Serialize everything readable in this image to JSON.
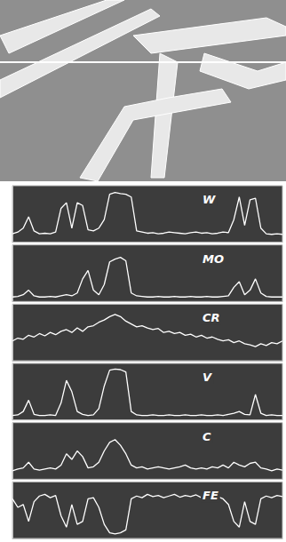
{
  "chart_data": {
    "type": "line",
    "x": [
      0,
      2,
      4,
      6,
      8,
      10,
      12,
      14,
      16,
      18,
      20,
      22,
      24,
      26,
      28,
      30,
      32,
      34,
      36,
      38,
      40,
      42,
      44,
      46,
      48,
      50,
      52,
      54,
      56,
      58,
      60,
      62,
      64,
      66,
      68,
      70,
      72,
      74,
      76,
      78,
      80,
      82,
      84,
      86,
      88,
      90,
      92,
      94,
      96,
      98,
      100
    ],
    "series": [
      {
        "name": "W",
        "color": "#ffffff",
        "values": [
          15,
          18,
          25,
          45,
          20,
          15,
          16,
          15,
          18,
          60,
          70,
          25,
          70,
          65,
          22,
          20,
          25,
          40,
          85,
          88,
          86,
          85,
          80,
          20,
          18,
          16,
          17,
          15,
          16,
          18,
          17,
          16,
          15,
          17,
          18,
          16,
          17,
          15,
          16,
          18,
          17,
          40,
          80,
          30,
          75,
          78,
          25,
          15,
          14,
          15,
          14
        ]
      },
      {
        "name": "MO",
        "color": "#ffffff",
        "values": [
          8,
          9,
          12,
          20,
          10,
          8,
          8,
          9,
          8,
          10,
          12,
          10,
          15,
          40,
          55,
          20,
          12,
          30,
          70,
          75,
          78,
          72,
          15,
          10,
          9,
          8,
          8,
          9,
          8,
          8,
          9,
          8,
          8,
          9,
          8,
          8,
          9,
          8,
          8,
          9,
          10,
          25,
          35,
          12,
          20,
          40,
          15,
          9,
          8,
          8,
          8
        ]
      },
      {
        "name": "CR",
        "color": "#ffffff",
        "values": [
          35,
          40,
          38,
          45,
          42,
          48,
          44,
          50,
          46,
          52,
          55,
          50,
          58,
          52,
          60,
          62,
          68,
          72,
          78,
          82,
          78,
          70,
          65,
          60,
          62,
          58,
          55,
          57,
          50,
          52,
          48,
          50,
          45,
          47,
          42,
          45,
          40,
          42,
          38,
          35,
          37,
          32,
          35,
          30,
          28,
          25,
          30,
          27,
          32,
          30,
          35
        ]
      },
      {
        "name": "V",
        "color": "#ffffff",
        "values": [
          8,
          9,
          15,
          35,
          10,
          8,
          8,
          9,
          8,
          30,
          70,
          50,
          15,
          10,
          8,
          9,
          20,
          60,
          88,
          90,
          89,
          85,
          15,
          9,
          8,
          8,
          9,
          8,
          8,
          9,
          8,
          8,
          9,
          8,
          8,
          9,
          8,
          8,
          9,
          8,
          10,
          12,
          15,
          10,
          9,
          45,
          12,
          8,
          9,
          8,
          8
        ]
      },
      {
        "name": "C",
        "color": "#ffffff",
        "values": [
          15,
          18,
          20,
          30,
          18,
          16,
          18,
          20,
          18,
          25,
          45,
          35,
          50,
          40,
          20,
          22,
          30,
          50,
          65,
          70,
          60,
          45,
          25,
          20,
          22,
          18,
          20,
          22,
          20,
          18,
          20,
          22,
          25,
          20,
          18,
          20,
          18,
          22,
          20,
          25,
          20,
          30,
          25,
          22,
          28,
          30,
          20,
          18,
          15,
          18,
          16
        ]
      },
      {
        "name": "FE",
        "color": "#ffffff",
        "values": [
          70,
          55,
          60,
          30,
          65,
          75,
          78,
          72,
          76,
          40,
          20,
          60,
          25,
          30,
          70,
          72,
          55,
          25,
          10,
          8,
          10,
          15,
          70,
          75,
          72,
          78,
          74,
          76,
          72,
          75,
          78,
          73,
          76,
          74,
          77,
          72,
          75,
          78,
          74,
          70,
          60,
          30,
          20,
          65,
          30,
          25,
          70,
          75,
          72,
          76,
          74
        ]
      }
    ],
    "xlim": [
      0,
      100
    ],
    "ylim": [
      0,
      100
    ],
    "tick_labels": false,
    "grid": false
  }
}
